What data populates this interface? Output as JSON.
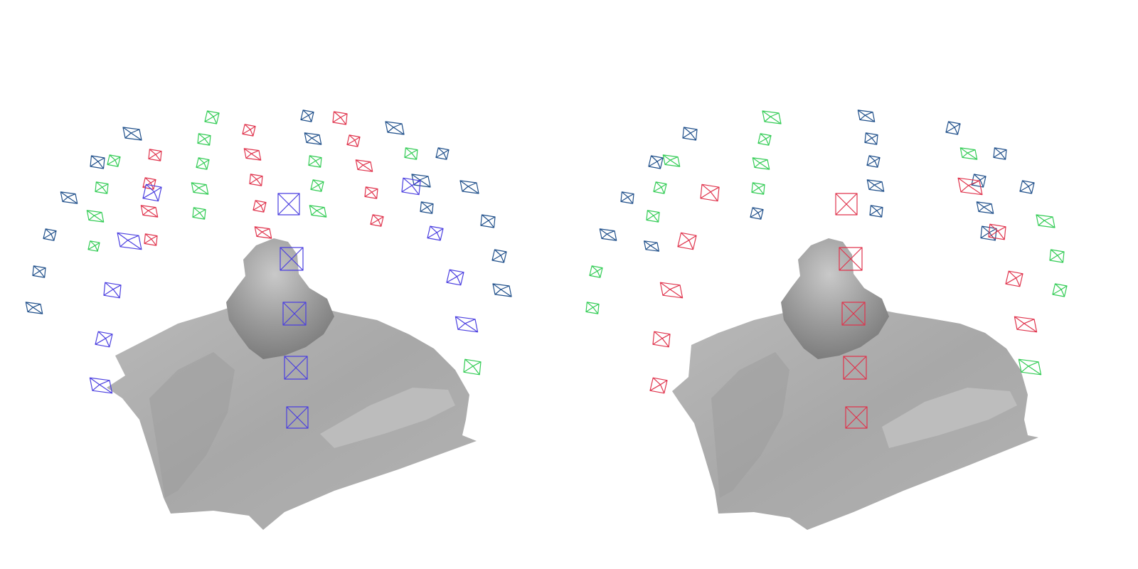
{
  "colors": {
    "background": "#ffffff",
    "mesh_light": "#c4c4c4",
    "mesh_mid": "#a9a9a9",
    "mesh_dark": "#8e8e8e",
    "camera_dark_blue": "#1f4f8a",
    "camera_green": "#33cc55",
    "camera_red": "#e0344d",
    "camera_violet": "#4b3fe0"
  },
  "panels": [
    {
      "id": "left",
      "mesh": "gray-reconstructed-surface",
      "cameras": [
        "dark_blue",
        "green",
        "red",
        "violet"
      ]
    },
    {
      "id": "right",
      "mesh": "gray-reconstructed-surface",
      "cameras": [
        "dark_blue",
        "green",
        "red"
      ]
    }
  ]
}
